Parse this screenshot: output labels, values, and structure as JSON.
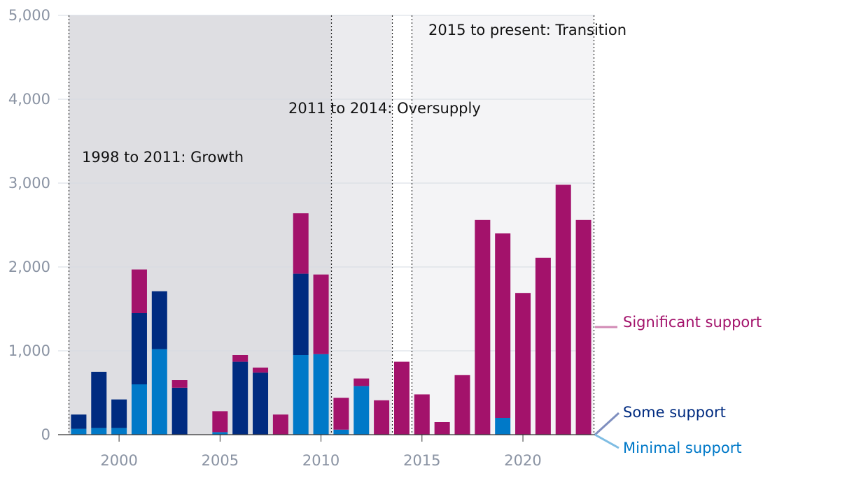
{
  "chart_data": {
    "type": "bar",
    "stacked": true,
    "x": [
      1998,
      1999,
      2000,
      2001,
      2002,
      2003,
      2004,
      2005,
      2006,
      2007,
      2008,
      2009,
      2010,
      2011,
      2012,
      2013,
      2014,
      2015,
      2016,
      2017,
      2018,
      2019,
      2020,
      2021,
      2022,
      2023
    ],
    "series": [
      {
        "name": "Minimal support",
        "color": "#0079c8",
        "values": [
          70,
          80,
          80,
          600,
          1020,
          0,
          0,
          30,
          0,
          0,
          0,
          950,
          960,
          60,
          580,
          0,
          0,
          0,
          0,
          0,
          0,
          200,
          0,
          0,
          0,
          0
        ]
      },
      {
        "name": "Some support",
        "color": "#002b80",
        "values": [
          170,
          670,
          340,
          850,
          690,
          560,
          0,
          0,
          870,
          740,
          0,
          970,
          0,
          0,
          0,
          0,
          0,
          0,
          0,
          0,
          0,
          0,
          0,
          0,
          0,
          0
        ]
      },
      {
        "name": "Significant support",
        "color": "#a3126b",
        "values": [
          0,
          0,
          0,
          520,
          0,
          90,
          0,
          250,
          80,
          60,
          240,
          720,
          950,
          380,
          90,
          410,
          870,
          480,
          150,
          710,
          2560,
          2200,
          1690,
          2110,
          2980,
          2560
        ]
      }
    ],
    "ylim": [
      0,
      5000
    ],
    "yticks": [
      "0",
      "1,000",
      "2,000",
      "3,000",
      "4,000",
      "5,000"
    ],
    "xticks": [
      2000,
      2005,
      2010,
      2015,
      2020
    ],
    "grid": true,
    "periods": [
      {
        "label": "1998 to 2011: Growth",
        "start": 1998,
        "end": 2011,
        "shade": "#dedee2"
      },
      {
        "label": "2011 to 2014: Oversupply",
        "start": 2011,
        "end": 2014,
        "shade": "#ebebee"
      },
      {
        "label": "2015 to present: Transition",
        "start": 2015,
        "end": 2023,
        "shade": "#f4f4f6"
      }
    ],
    "legend": [
      {
        "label": "Significant support",
        "color": "#a3126b",
        "line_color": "#d28ab5"
      },
      {
        "label": "Some support",
        "color": "#002b80",
        "line_color": "#7f8fbf"
      },
      {
        "label": "Minimal support",
        "color": "#0079c8",
        "line_color": "#7fbde3"
      }
    ],
    "legend_placement": "right"
  }
}
